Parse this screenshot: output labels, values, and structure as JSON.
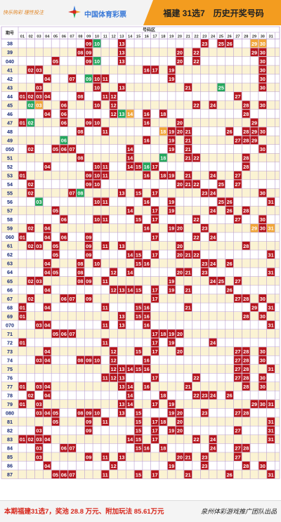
{
  "header": {
    "tagline": "快乐购彩 理性投注",
    "brand": "中国体育彩票",
    "title": "福建 31选7　历史开奖号码"
  },
  "grid": {
    "corner_label": "期号",
    "zone_label": "号码区",
    "columns": [
      "01",
      "02",
      "03",
      "04",
      "05",
      "06",
      "07",
      "08",
      "09",
      "10",
      "11",
      "12",
      "13",
      "14",
      "15",
      "16",
      "17",
      "18",
      "19",
      "20",
      "21",
      "22",
      "23",
      "24",
      "25",
      "26",
      "27",
      "28",
      "29",
      "30",
      "31"
    ],
    "rows": [
      {
        "issue": "38",
        "main": [
          9,
          13,
          23,
          25,
          26
        ],
        "special": [
          10
        ],
        "extra": [
          29,
          30
        ]
      },
      {
        "issue": "39",
        "main": [
          8,
          9,
          13,
          20,
          22,
          29,
          30
        ],
        "special": [],
        "extra": []
      },
      {
        "issue": "040",
        "main": [
          5,
          9,
          13,
          20,
          22,
          30
        ],
        "special": [
          10
        ],
        "extra": []
      },
      {
        "issue": "41",
        "main": [
          2,
          3,
          16,
          17,
          19,
          30
        ],
        "special": [],
        "extra": []
      },
      {
        "issue": "42",
        "main": [
          4,
          7,
          10,
          11,
          19,
          30
        ],
        "special": [
          9
        ],
        "extra": []
      },
      {
        "issue": "43",
        "main": [
          3,
          10,
          13,
          21,
          30
        ],
        "special": [
          25
        ],
        "extra": []
      },
      {
        "issue": "44",
        "main": [
          1,
          2,
          3,
          4,
          8,
          11,
          12,
          27
        ],
        "special": [],
        "extra": []
      },
      {
        "issue": "45",
        "main": [
          6,
          10,
          12,
          22,
          24,
          28,
          30
        ],
        "special": [
          2
        ],
        "extra": [
          3
        ]
      },
      {
        "issue": "46",
        "main": [
          4,
          6,
          12,
          16,
          18,
          28
        ],
        "special": [
          13
        ],
        "extra": [
          14
        ]
      },
      {
        "issue": "47",
        "main": [
          1,
          6,
          9,
          10,
          16,
          20,
          29
        ],
        "special": [
          2
        ],
        "extra": []
      },
      {
        "issue": "48",
        "main": [
          8,
          11,
          19,
          20,
          21,
          26,
          28,
          29,
          30
        ],
        "special": [],
        "extra": [
          18
        ]
      },
      {
        "issue": "49",
        "main": [
          16,
          19,
          21,
          27,
          28,
          29
        ],
        "special": [
          6
        ],
        "extra": []
      },
      {
        "issue": "050",
        "main": [
          2,
          5,
          6,
          7,
          14,
          19,
          21,
          30
        ],
        "special": [],
        "extra": []
      },
      {
        "issue": "51",
        "main": [
          8,
          14,
          21,
          22,
          28
        ],
        "special": [
          18
        ],
        "extra": []
      },
      {
        "issue": "52",
        "main": [
          4,
          10,
          11,
          14,
          15,
          17,
          28
        ],
        "special": [
          16
        ],
        "extra": []
      },
      {
        "issue": "53",
        "main": [
          1,
          9,
          10,
          11,
          16,
          18,
          19,
          21,
          24,
          27
        ],
        "special": [],
        "extra": []
      },
      {
        "issue": "54",
        "main": [
          2,
          9,
          10,
          20,
          21,
          22,
          25,
          27
        ],
        "special": [],
        "extra": []
      },
      {
        "issue": "55",
        "main": [
          2,
          7,
          13,
          15,
          17,
          23,
          24,
          30
        ],
        "special": [
          8
        ],
        "extra": []
      },
      {
        "issue": "56",
        "main": [
          10,
          11,
          16,
          19,
          25,
          26,
          31
        ],
        "special": [
          3
        ],
        "extra": []
      },
      {
        "issue": "57",
        "main": [
          5,
          14,
          17,
          19,
          24,
          26,
          28
        ],
        "special": [],
        "extra": []
      },
      {
        "issue": "58",
        "main": [
          6,
          10,
          11,
          15,
          17,
          22,
          27,
          30
        ],
        "special": [],
        "extra": []
      },
      {
        "issue": "59",
        "main": [
          2,
          4,
          16,
          19,
          20,
          23,
          30
        ],
        "special": [],
        "extra": [
          29,
          31
        ]
      },
      {
        "issue": "060",
        "main": [
          1,
          4,
          6,
          9,
          17,
          22,
          24
        ],
        "special": [],
        "extra": []
      },
      {
        "issue": "61",
        "main": [
          2,
          3,
          5,
          9,
          11,
          13,
          20,
          28
        ],
        "special": [],
        "extra": []
      },
      {
        "issue": "62",
        "main": [
          5,
          9,
          14,
          15,
          17,
          20,
          21,
          22,
          31
        ],
        "special": [],
        "extra": []
      },
      {
        "issue": "63",
        "main": [
          4,
          8,
          10,
          15,
          16,
          23,
          24,
          26
        ],
        "special": [],
        "extra": []
      },
      {
        "issue": "64",
        "main": [
          4,
          5,
          8,
          12,
          14,
          20,
          21,
          23,
          31
        ],
        "special": [],
        "extra": []
      },
      {
        "issue": "65",
        "main": [
          2,
          3,
          8,
          9,
          11,
          19,
          24,
          25,
          27
        ],
        "special": [],
        "extra": []
      },
      {
        "issue": "66",
        "main": [
          4,
          12,
          13,
          14,
          15,
          17,
          19,
          21,
          26
        ],
        "special": [],
        "extra": []
      },
      {
        "issue": "67",
        "main": [
          2,
          6,
          7,
          9,
          17,
          27,
          28,
          30
        ],
        "special": [],
        "extra": []
      },
      {
        "issue": "68",
        "main": [
          1,
          4,
          11,
          15,
          16,
          21,
          29,
          31
        ],
        "special": [],
        "extra": []
      },
      {
        "issue": "69",
        "main": [
          1,
          13,
          15,
          16,
          28,
          30
        ],
        "special": [],
        "extra": []
      },
      {
        "issue": "070",
        "main": [
          3,
          4,
          11,
          13,
          16,
          31
        ],
        "special": [],
        "extra": []
      },
      {
        "issue": "71",
        "main": [
          5,
          6,
          7,
          17,
          18,
          19,
          20
        ],
        "special": [],
        "extra": []
      },
      {
        "issue": "72",
        "main": [
          1,
          11,
          17,
          19,
          24
        ],
        "special": [],
        "extra": []
      },
      {
        "issue": "73",
        "main": [
          4,
          12,
          15,
          17,
          20,
          27,
          28,
          30
        ],
        "special": [],
        "extra": []
      },
      {
        "issue": "74",
        "main": [
          3,
          4,
          8,
          9,
          10,
          12,
          16,
          27,
          28,
          30
        ],
        "special": [],
        "extra": []
      },
      {
        "issue": "75",
        "main": [
          12,
          13,
          14,
          15,
          16,
          27,
          28,
          31
        ],
        "special": [],
        "extra": []
      },
      {
        "issue": "76",
        "main": [
          11,
          12,
          13,
          17,
          22,
          27,
          28,
          30
        ],
        "special": [],
        "extra": []
      },
      {
        "issue": "77",
        "main": [
          1,
          3,
          4,
          13,
          14,
          16,
          21,
          28,
          30
        ],
        "special": [],
        "extra": []
      },
      {
        "issue": "78",
        "main": [
          2,
          4,
          14,
          18,
          22,
          23,
          24,
          26
        ],
        "special": [],
        "extra": []
      },
      {
        "issue": "79",
        "main": [
          1,
          3,
          13,
          14,
          17,
          19,
          29,
          30,
          31
        ],
        "special": [],
        "extra": []
      },
      {
        "issue": "080",
        "main": [
          3,
          4,
          5,
          8,
          9,
          10,
          13,
          15,
          19,
          20,
          23,
          27,
          28
        ],
        "special": [],
        "extra": []
      },
      {
        "issue": "81",
        "main": [
          5,
          9,
          11,
          15,
          17,
          18,
          20,
          31
        ],
        "special": [],
        "extra": []
      },
      {
        "issue": "82",
        "main": [
          3,
          9,
          15,
          17,
          19,
          20,
          27,
          31
        ],
        "special": [],
        "extra": []
      },
      {
        "issue": "83",
        "main": [
          1,
          2,
          3,
          4,
          14,
          15,
          17,
          22,
          24,
          31
        ],
        "special": [],
        "extra": []
      },
      {
        "issue": "84",
        "main": [
          3,
          6,
          7,
          15,
          16,
          18,
          24,
          27,
          28
        ],
        "special": [],
        "extra": []
      },
      {
        "issue": "85",
        "main": [
          3,
          9,
          11,
          13,
          20,
          21,
          23,
          27
        ],
        "special": [],
        "extra": []
      },
      {
        "issue": "86",
        "main": [
          4,
          12,
          19,
          23,
          28,
          30
        ],
        "special": [],
        "extra": []
      },
      {
        "issue": "87",
        "main": [
          5,
          6,
          7,
          11,
          15,
          17,
          21,
          26,
          31
        ],
        "special": [],
        "extra": []
      }
    ]
  },
  "footer": {
    "note": "本期福建31选7，奖池 28.8 万元、附加玩法 85.61万元",
    "team": "泉州体彩游戏推广团队出品"
  },
  "colors": {
    "accent": "#f39c1f",
    "main_ball": "#b5141c",
    "special_ball": "#24a75c",
    "extra_ball": "#f1a638",
    "grid_line": "#b99fd0",
    "row_alt": "#fbf3d3"
  }
}
